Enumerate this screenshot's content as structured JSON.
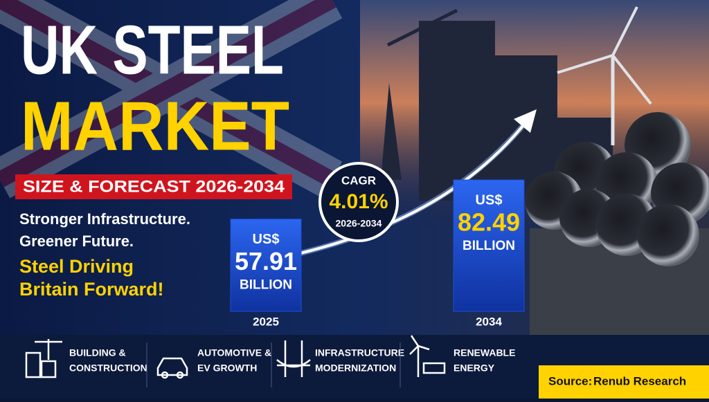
{
  "header": {
    "title_line1": "UK STEEL",
    "title_line2": "MARKET",
    "banner": "SIZE & FORECAST 2026-2034"
  },
  "taglines": [
    "Stronger Infrastructure.",
    "Greener Future."
  ],
  "highlight": [
    "Steel Driving",
    "Britain Forward!"
  ],
  "chart_data": {
    "type": "bar",
    "categories": [
      "2025",
      "2034"
    ],
    "values": [
      57.91,
      82.49
    ],
    "value_prefix": "US$",
    "value_unit": "BILLION",
    "color": "#1a4fd6",
    "value_colors": [
      "#ffffff",
      "#ffd200"
    ]
  },
  "cagr": {
    "label": "CAGR",
    "value": "4.01%",
    "period": "2026-2034"
  },
  "sectors": [
    {
      "lines": [
        "BUILDING &",
        "CONSTRUCTION"
      ]
    },
    {
      "lines": [
        "AUTOMOTIVE &",
        "EV GROWTH"
      ]
    },
    {
      "lines": [
        "INFRASTRUCTURE",
        "MODERNIZATION"
      ]
    },
    {
      "lines": [
        "RENEWABLE",
        "ENERGY"
      ]
    }
  ],
  "source": {
    "label": "Source:",
    "name": "Renub Research"
  }
}
